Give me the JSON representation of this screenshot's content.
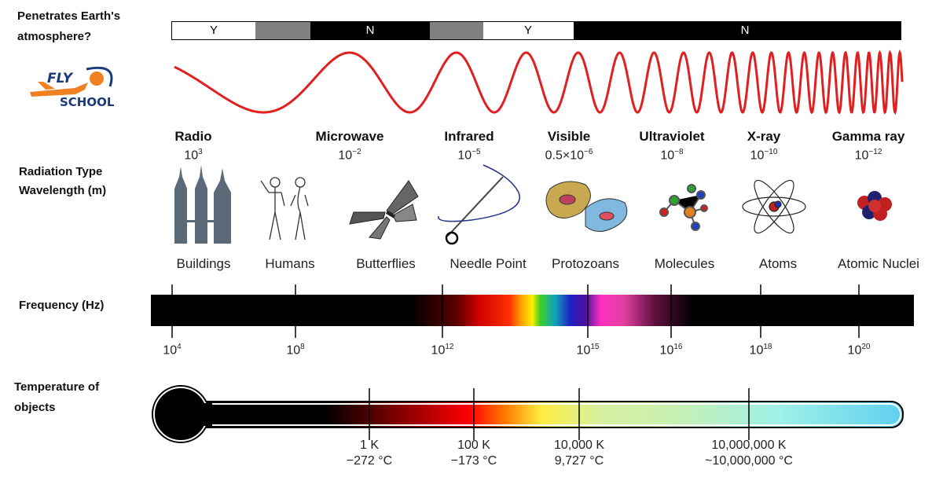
{
  "labels": {
    "penetrates": "Penetrates Earth's atmosphere?",
    "radiation_type": "Radiation Type",
    "wavelength": "Wavelength (m)",
    "frequency": "Frequency (Hz)",
    "temperature": "Temperature of objects"
  },
  "logo": {
    "top": "FLY",
    "bottom": "SCHOOL"
  },
  "atmosphere": [
    "Y",
    "N",
    "Y",
    "N"
  ],
  "bands": [
    {
      "name": "Radio",
      "wavelength": {
        "base": "10",
        "exponent": "3"
      }
    },
    {
      "name": "Microwave",
      "wavelength": {
        "base": "10",
        "exponent": "−2"
      }
    },
    {
      "name": "Infrared",
      "wavelength": {
        "base": "10",
        "exponent": "−5"
      }
    },
    {
      "name": "Visible",
      "wavelength": {
        "base": "0.5×10",
        "exponent": "−6"
      }
    },
    {
      "name": "Ultraviolet",
      "wavelength": {
        "base": "10",
        "exponent": "−8"
      }
    },
    {
      "name": "X-ray",
      "wavelength": {
        "base": "10",
        "exponent": "−10"
      }
    },
    {
      "name": "Gamma ray",
      "wavelength": {
        "base": "10",
        "exponent": "−12"
      }
    }
  ],
  "objects": [
    "Buildings",
    "Humans",
    "Butterflies",
    "Needle Point",
    "Protozoans",
    "Molecules",
    "Atoms",
    "Atomic Nuclei"
  ],
  "frequency_ticks": [
    {
      "base": "10",
      "exponent": "4"
    },
    {
      "base": "10",
      "exponent": "8"
    },
    {
      "base": "10",
      "exponent": "12"
    },
    {
      "base": "10",
      "exponent": "15"
    },
    {
      "base": "10",
      "exponent": "16"
    },
    {
      "base": "10",
      "exponent": "18"
    },
    {
      "base": "10",
      "exponent": "20"
    }
  ],
  "temperature_ticks": [
    {
      "kelvin": "1 K",
      "celsius": "−272 °C"
    },
    {
      "kelvin": "100 K",
      "celsius": "−173 °C"
    },
    {
      "kelvin": "10,000 K",
      "celsius": "9,727 °C"
    },
    {
      "kelvin": "10,000,000 K",
      "celsius": "~10,000,000 °C"
    }
  ]
}
